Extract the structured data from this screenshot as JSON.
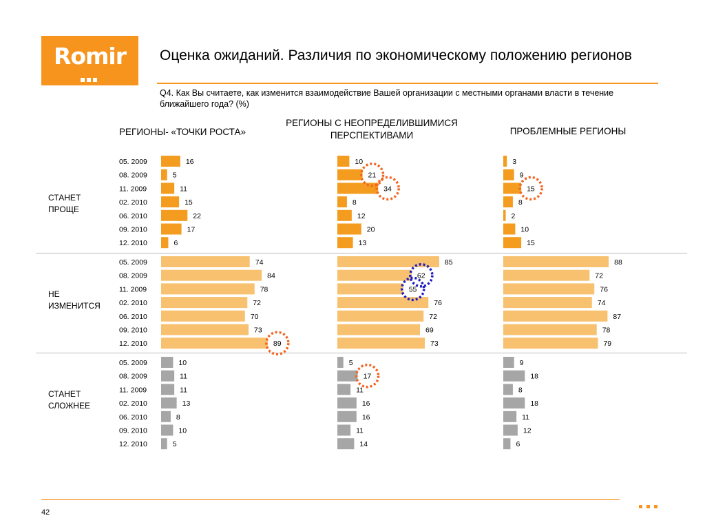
{
  "logo": {
    "text": "Romir"
  },
  "title": "Оценка ожиданий. Различия по экономическому положению регионов",
  "question": "Q4. Как Вы считаете, как изменится взаимодействие Вашей организации с местными органами власти в течение ближайшего года? (%)",
  "page_number": "42",
  "colors": {
    "accent": "#f7941d",
    "easier": "#f39c1f",
    "unchanged": "#f7c16f",
    "harder": "#a6a6a6",
    "circle_orange": "#f26522",
    "circle_blue": "#1f1fc4"
  },
  "chart_data": {
    "type": "bar",
    "orientation": "horizontal",
    "periods": [
      "05. 2009",
      "08. 2009",
      "11. 2009",
      "02. 2010",
      "06. 2010",
      "09. 2010",
      "12. 2010"
    ],
    "columns": [
      "РЕГИОНЫ- «ТОЧКИ РОСТА»",
      "РЕГИОНЫ   С НЕОПРЕДЕЛИВШИМИСЯ ПЕРСПЕКТИВАМИ",
      "ПРОБЛЕМНЫЕ РЕГИОНЫ"
    ],
    "groups": [
      {
        "label": "СТАНЕТ ПРОЩЕ",
        "color": "#f39c1f",
        "values": [
          [
            16,
            5,
            11,
            15,
            22,
            17,
            6
          ],
          [
            10,
            21,
            34,
            8,
            12,
            20,
            13
          ],
          [
            3,
            9,
            15,
            8,
            2,
            10,
            15
          ]
        ]
      },
      {
        "label": "НЕ ИЗМЕНИТСЯ",
        "color": "#f7c16f",
        "values": [
          [
            74,
            84,
            78,
            72,
            70,
            73,
            89
          ],
          [
            85,
            62,
            55,
            76,
            72,
            69,
            73
          ],
          [
            88,
            72,
            76,
            74,
            87,
            78,
            79
          ]
        ]
      },
      {
        "label": "СТАНЕТ СЛОЖНЕЕ",
        "color": "#a6a6a6",
        "values": [
          [
            10,
            11,
            11,
            13,
            8,
            10,
            5
          ],
          [
            5,
            17,
            11,
            16,
            16,
            11,
            14
          ],
          [
            9,
            18,
            8,
            18,
            11,
            12,
            6
          ]
        ]
      }
    ],
    "highlights": [
      {
        "group": 0,
        "column": 1,
        "period": 1,
        "color": "orange"
      },
      {
        "group": 0,
        "column": 1,
        "period": 2,
        "color": "orange"
      },
      {
        "group": 0,
        "column": 2,
        "period": 2,
        "color": "orange"
      },
      {
        "group": 1,
        "column": 0,
        "period": 6,
        "color": "orange"
      },
      {
        "group": 1,
        "column": 1,
        "period": 1,
        "color": "blue"
      },
      {
        "group": 1,
        "column": 1,
        "period": 2,
        "color": "blue"
      },
      {
        "group": 2,
        "column": 1,
        "period": 1,
        "color": "orange"
      }
    ]
  }
}
